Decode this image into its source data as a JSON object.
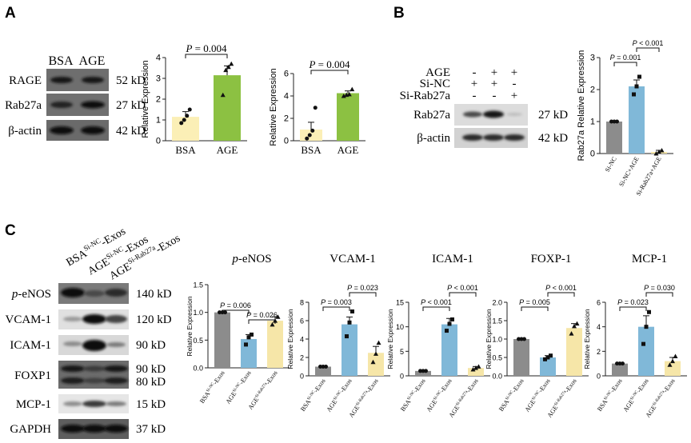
{
  "panels": {
    "A": {
      "letter": "A",
      "blot": {
        "lanes": [
          "BSA",
          "AGE"
        ],
        "rows": [
          {
            "label": "RAGE",
            "size": "52 kD"
          },
          {
            "label": "Rab27a",
            "size": "27 kD"
          },
          {
            "label": "β-actin",
            "size": "42 kD"
          }
        ]
      }
    },
    "B": {
      "letter": "B",
      "blot": {
        "conditions": [
          {
            "label": "AGE",
            "signs": [
              "-",
              "+",
              "+"
            ]
          },
          {
            "label": "Si-NC",
            "signs": [
              "+",
              "+",
              "-"
            ]
          },
          {
            "label": "Si-Rab27a",
            "signs": [
              "-",
              "-",
              "+"
            ]
          }
        ],
        "rows": [
          {
            "label": "Rab27a",
            "size": "27 kD"
          },
          {
            "label": "β-actin",
            "size": "42 kD"
          }
        ]
      }
    },
    "C": {
      "letter": "C",
      "blot": {
        "lanes": [
          {
            "base": "BSA",
            "sup": "Si-NC",
            "suffix": "-Exos"
          },
          {
            "base": "AGE",
            "sup": "Si-NC",
            "suffix": "-Exos"
          },
          {
            "base": "AGE",
            "sup": "Si-Rab27a",
            "suffix": "-Exos"
          }
        ],
        "rows": [
          {
            "label": "p-eNOS",
            "size": "140 kD"
          },
          {
            "label": "VCAM-1",
            "size": "120 kD"
          },
          {
            "label": "ICAM-1",
            "size": "90 kD"
          },
          {
            "label": "FOXP1",
            "size": "90 kD",
            "size2": "80 kD"
          },
          {
            "label": "MCP-1",
            "size": "15 kD"
          },
          {
            "label": "GAPDH",
            "size": "37 kD"
          }
        ]
      }
    }
  },
  "colors": {
    "bsa": "#fbefb6",
    "age_green": "#8cc142",
    "gray": "#8c8c8c",
    "blue": "#80b8d8",
    "cream": "#f6e6a8"
  },
  "chart_data": [
    {
      "type": "bar",
      "id": "A1",
      "categories": [
        "BSA",
        "AGE"
      ],
      "values": [
        1.15,
        3.15
      ],
      "errors": [
        0.25,
        0.45
      ],
      "points": [
        [
          0.85,
          1.0,
          1.2,
          1.5
        ],
        [
          2.2,
          3.4,
          3.55,
          3.7
        ]
      ],
      "colors": [
        "#fbefb6",
        "#8cc142"
      ],
      "ylabel": "Relative Expression",
      "ylim": [
        0,
        4
      ],
      "yticks": [
        0,
        1,
        2,
        3,
        4
      ],
      "comparisons": [
        {
          "from": 0,
          "to": 1,
          "label": "P = 0.004"
        }
      ]
    },
    {
      "type": "bar",
      "id": "A2",
      "categories": [
        "BSA",
        "AGE"
      ],
      "values": [
        1.0,
        4.25
      ],
      "errors": [
        0.65,
        0.2
      ],
      "points": [
        [
          0.2,
          0.5,
          0.9,
          2.95
        ],
        [
          4.0,
          4.1,
          4.15,
          4.6
        ]
      ],
      "colors": [
        "#fbefb6",
        "#8cc142"
      ],
      "ylabel": "Relative Expression",
      "ylim": [
        0,
        6
      ],
      "yticks": [
        0,
        2,
        4,
        6
      ],
      "comparisons": [
        {
          "from": 0,
          "to": 1,
          "label": "P = 0.004"
        }
      ]
    },
    {
      "type": "bar",
      "id": "B",
      "categories": [
        "Si-NC",
        "Si-NC+AGE",
        "Si-Rab27a+AGE"
      ],
      "values": [
        1.0,
        2.1,
        0.05
      ],
      "errors": [
        0,
        0.2,
        0.05
      ],
      "points": [
        [
          1.0,
          1.0,
          1.0
        ],
        [
          1.85,
          2.1,
          2.4
        ],
        [
          0.0,
          0.05,
          0.1
        ]
      ],
      "colors": [
        "#8c8c8c",
        "#80b8d8",
        "#f6e6a8"
      ],
      "ylabel": "Rab27a Relative Expression",
      "ylim": [
        0,
        3
      ],
      "yticks": [
        0,
        1,
        2,
        3
      ],
      "comparisons": [
        {
          "from": 0,
          "to": 1,
          "label": "P = 0.001"
        },
        {
          "from": 1,
          "to": 2,
          "label": "P < 0.001"
        }
      ]
    },
    {
      "type": "bar",
      "id": "C1",
      "title": "p-eNOS",
      "title_italic_prefix": "p",
      "categories": [
        {
          "base": "BSA",
          "sup": "Si-NC",
          "suffix": "-Exos"
        },
        {
          "base": "AGE",
          "sup": "Si-NC",
          "suffix": "-Exos"
        },
        {
          "base": "AGE",
          "sup": "Si-Rab27a",
          "suffix": "-Exos"
        }
      ],
      "values": [
        1.0,
        0.52,
        0.85
      ],
      "errors": [
        0,
        0.08,
        0.07
      ],
      "points": [
        [
          1.0,
          1.0,
          1.0
        ],
        [
          0.42,
          0.55,
          0.6
        ],
        [
          0.78,
          0.85,
          0.92
        ]
      ],
      "colors": [
        "#8c8c8c",
        "#80b8d8",
        "#f6e6a8"
      ],
      "ylabel": "Relative Expression",
      "ylim": [
        0,
        1.5
      ],
      "yticks": [
        0.0,
        0.5,
        1.0,
        1.5
      ],
      "comparisons": [
        {
          "from": 0,
          "to": 1,
          "label": "P = 0.006"
        },
        {
          "from": 1,
          "to": 2,
          "label": "P = 0.026"
        }
      ]
    },
    {
      "type": "bar",
      "id": "C2",
      "title": "VCAM-1",
      "categories": [
        {
          "base": "BSA",
          "sup": "Si-NC",
          "suffix": "-Exos"
        },
        {
          "base": "AGE",
          "sup": "Si-NC",
          "suffix": "-Exos"
        },
        {
          "base": "AGE",
          "sup": "Si-Rab27a",
          "suffix": "-Exos"
        }
      ],
      "values": [
        1.0,
        5.6,
        2.5
      ],
      "errors": [
        0,
        0.8,
        0.7
      ],
      "points": [
        [
          1.0,
          1.0,
          1.0
        ],
        [
          4.3,
          5.8,
          7.0
        ],
        [
          1.5,
          2.4,
          3.6
        ]
      ],
      "colors": [
        "#8c8c8c",
        "#80b8d8",
        "#f6e6a8"
      ],
      "ylabel": "Relative Expression",
      "ylim": [
        0,
        8
      ],
      "yticks": [
        0,
        2,
        4,
        6,
        8
      ],
      "comparisons": [
        {
          "from": 0,
          "to": 1,
          "label": "P = 0.003"
        },
        {
          "from": 1,
          "to": 2,
          "label": "P = 0.023"
        }
      ]
    },
    {
      "type": "bar",
      "id": "C3",
      "title": "ICAM-1",
      "categories": [
        {
          "base": "BSA",
          "sup": "Si-NC",
          "suffix": "-Exos"
        },
        {
          "base": "AGE",
          "sup": "Si-NC",
          "suffix": "-Exos"
        },
        {
          "base": "AGE",
          "sup": "Si-Rab27a",
          "suffix": "-Exos"
        }
      ],
      "values": [
        1.0,
        10.5,
        1.6
      ],
      "errors": [
        0,
        1.2,
        0.3
      ],
      "points": [
        [
          1.0,
          1.0,
          1.0
        ],
        [
          9.2,
          10.6,
          11.5
        ],
        [
          1.3,
          1.6,
          1.9
        ]
      ],
      "colors": [
        "#8c8c8c",
        "#80b8d8",
        "#f6e6a8"
      ],
      "ylabel": "Relative Expression",
      "ylim": [
        0,
        15
      ],
      "yticks": [
        0,
        5,
        10,
        15
      ],
      "comparisons": [
        {
          "from": 0,
          "to": 1,
          "label": "P < 0.001"
        },
        {
          "from": 1,
          "to": 2,
          "label": "P < 0.001"
        }
      ]
    },
    {
      "type": "bar",
      "id": "C4",
      "title": "FOXP-1",
      "categories": [
        {
          "base": "BSA",
          "sup": "Si-NC",
          "suffix": "-Exos"
        },
        {
          "base": "AGE",
          "sup": "Si-NC",
          "suffix": "-Exos"
        },
        {
          "base": "AGE",
          "sup": "Si-Rab27a",
          "suffix": "-Exos"
        }
      ],
      "values": [
        1.0,
        0.5,
        1.3
      ],
      "errors": [
        0,
        0.05,
        0.12
      ],
      "points": [
        [
          1.0,
          1.0,
          1.0
        ],
        [
          0.45,
          0.5,
          0.55
        ],
        [
          1.15,
          1.35,
          1.42
        ]
      ],
      "colors": [
        "#8c8c8c",
        "#80b8d8",
        "#f6e6a8"
      ],
      "ylabel": "Relative Expression",
      "ylim": [
        0,
        2
      ],
      "yticks": [
        0.0,
        0.5,
        1.0,
        1.5,
        2.0
      ],
      "comparisons": [
        {
          "from": 0,
          "to": 1,
          "label": "P = 0.005"
        },
        {
          "from": 1,
          "to": 2,
          "label": "P < 0.001"
        }
      ]
    },
    {
      "type": "bar",
      "id": "C5",
      "title": "MCP-1",
      "categories": [
        {
          "base": "BSA",
          "sup": "Si-NC",
          "suffix": "-Exos"
        },
        {
          "base": "AGE",
          "sup": "Si-NC",
          "suffix": "-Exos"
        },
        {
          "base": "AGE",
          "sup": "Si-Rab27a",
          "suffix": "-Exos"
        }
      ],
      "values": [
        1.0,
        4.0,
        1.2
      ],
      "errors": [
        0,
        0.9,
        0.3
      ],
      "points": [
        [
          1.0,
          1.0,
          1.0
        ],
        [
          2.6,
          4.0,
          5.2
        ],
        [
          0.9,
          1.2,
          1.6
        ]
      ],
      "colors": [
        "#8c8c8c",
        "#80b8d8",
        "#f6e6a8"
      ],
      "ylabel": "Relative Expression",
      "ylim": [
        0,
        6
      ],
      "yticks": [
        0,
        2,
        4,
        6
      ],
      "comparisons": [
        {
          "from": 0,
          "to": 1,
          "label": "P = 0.023"
        },
        {
          "from": 1,
          "to": 2,
          "label": "P = 0.030"
        }
      ]
    }
  ]
}
